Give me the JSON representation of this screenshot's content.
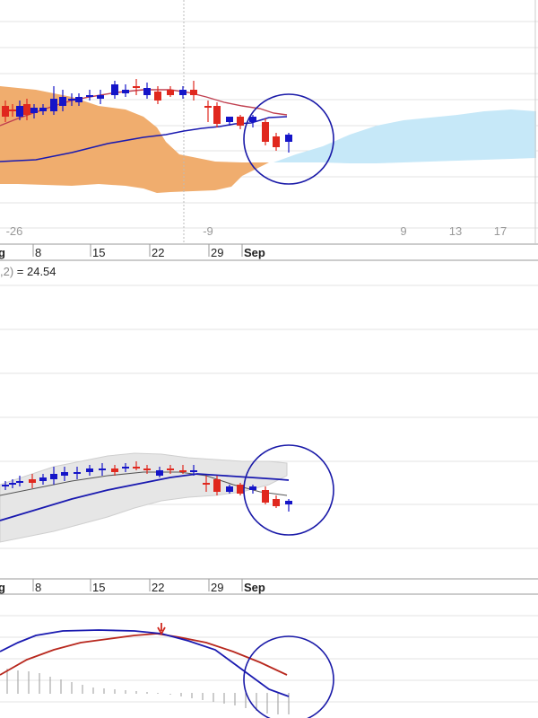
{
  "chart_data": [
    {
      "type": "candlestick",
      "panel": "ichimoku",
      "x_axis": {
        "tick_labels": [
          "8",
          "15",
          "22",
          "29",
          "Sep"
        ],
        "bold_labels": [
          "Sep"
        ],
        "leading_fragment": "g"
      },
      "day_offset_labels": [
        "-26",
        "-9",
        "9",
        "13",
        "17"
      ],
      "annotation": "circle around latest candles",
      "colors": {
        "up": "#1515c8",
        "down": "#e0281e",
        "cloud_bearish": "#f0ad6e",
        "cloud_bullish": "#c6e8f8",
        "base_line": "#1a1ab0",
        "conversion_line": "#c04050",
        "circle": "#1a1aa8"
      }
    },
    {
      "type": "candlestick",
      "panel": "bollinger",
      "param_label": {
        "prefix": ",2)",
        "text": " = 24.54"
      },
      "x_axis": {
        "tick_labels": [
          "8",
          "15",
          "22",
          "29",
          "Sep"
        ],
        "bold_labels": [
          "Sep"
        ],
        "leading_fragment": "g"
      },
      "annotation": "circle around latest candles",
      "colors": {
        "band": "#e6e6e6",
        "mid_line": "#555555",
        "long_ma": "#1a1ab0"
      }
    },
    {
      "type": "line",
      "panel": "macd",
      "series_colors": {
        "macd": "#1a1ab0",
        "signal": "#b8281e",
        "histogram": "#aaaaaa"
      },
      "annotation": "red arrow marking crossover; circle around latest values"
    }
  ]
}
